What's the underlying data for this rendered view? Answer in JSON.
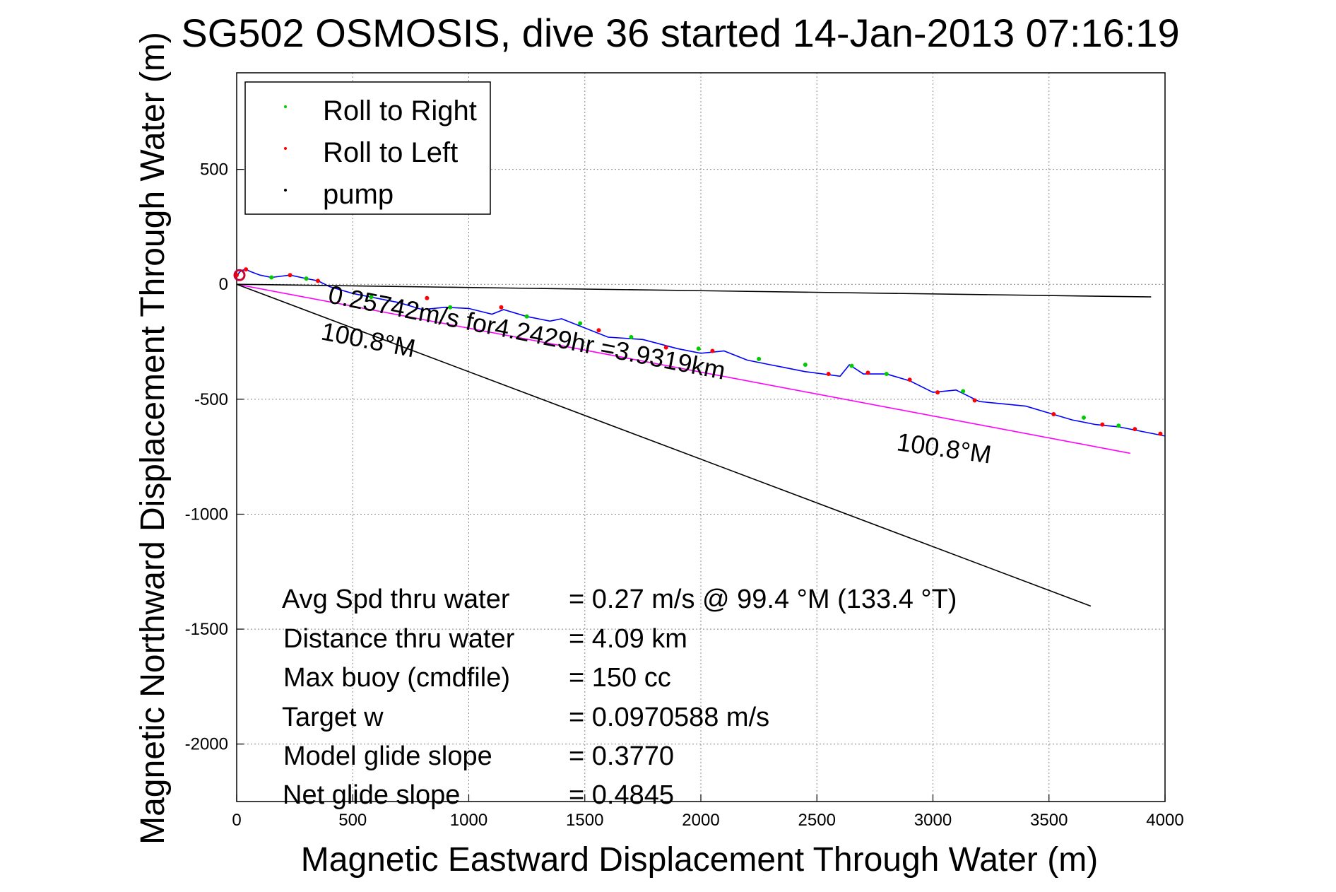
{
  "chart_data": {
    "type": "line",
    "title": "SG502 OSMOSIS, dive 36 started 14-Jan-2013 07:16:19",
    "xlabel": "Magnetic Eastward Displacement Through Water (m)",
    "ylabel": "Magnetic Northward Displacement Through Water (m)",
    "xlim": [
      0,
      4000
    ],
    "ylim": [
      -2250,
      920
    ],
    "xticks": [
      0,
      500,
      1000,
      1500,
      2000,
      2500,
      3000,
      3500,
      4000
    ],
    "yticks": [
      500,
      0,
      -500,
      -1000,
      -1500,
      -2000
    ],
    "grid": true,
    "legend_position": "top-left",
    "legend": [
      {
        "label": "Roll to Right",
        "color": "#00cc00"
      },
      {
        "label": "Roll to Left",
        "color": "#ff0000"
      },
      {
        "label": "pump",
        "color": "#000000"
      }
    ],
    "series": [
      {
        "color": "#0000ff",
        "x": [
          0,
          10,
          20,
          40,
          60,
          100,
          150,
          230,
          300,
          350,
          400,
          500,
          600,
          700,
          800,
          900,
          1000,
          1100,
          1150,
          1250,
          1350,
          1400,
          1500,
          1600,
          1750,
          1900,
          2000,
          2100,
          2200,
          2300,
          2350,
          2450,
          2600,
          2640,
          2700,
          2800,
          2900,
          3000,
          3100,
          3200,
          3300,
          3400,
          3500,
          3600,
          3700,
          3800,
          3900,
          4000
        ],
        "y": [
          30,
          50,
          60,
          65,
          55,
          40,
          30,
          40,
          25,
          15,
          -10,
          -40,
          -60,
          -80,
          -110,
          -100,
          -105,
          -130,
          -110,
          -140,
          -160,
          -150,
          -190,
          -230,
          -240,
          -280,
          -300,
          -290,
          -330,
          -350,
          -360,
          -380,
          -400,
          -350,
          -390,
          -390,
          -420,
          -470,
          -460,
          -510,
          -520,
          -530,
          -560,
          -590,
          -610,
          -620,
          -640,
          -660
        ]
      },
      {
        "color": "#ff00ff",
        "x": [
          0,
          3850
        ],
        "y": [
          0,
          -735
        ]
      },
      {
        "color": "#000000",
        "x": [
          0,
          3940
        ],
        "y": [
          0,
          -55
        ]
      },
      {
        "color": "#000000",
        "x": [
          0,
          3680
        ],
        "y": [
          0,
          -1400
        ]
      }
    ],
    "markers": {
      "roll_right": {
        "color": "#00cc00",
        "x": [
          150,
          300,
          580,
          920,
          1250,
          1480,
          1700,
          1990,
          2250,
          2450,
          2650,
          2800,
          3130,
          3650,
          3800
        ],
        "y": [
          30,
          25,
          -55,
          -100,
          -140,
          -170,
          -230,
          -280,
          -325,
          -350,
          -355,
          -390,
          -465,
          -580,
          -615
        ]
      },
      "roll_left": {
        "color": "#ff0000",
        "x": [
          0,
          40,
          230,
          350,
          820,
          1140,
          1560,
          1850,
          2050,
          2550,
          2720,
          2900,
          3020,
          3180,
          3520,
          3730,
          3870,
          3980
        ],
        "y": [
          40,
          65,
          40,
          15,
          -60,
          -100,
          -200,
          -275,
          -290,
          -390,
          -385,
          -415,
          -470,
          -505,
          -565,
          -610,
          -630,
          -650
        ]
      }
    },
    "annotations": {
      "speed_line": "0.25742m/s for4.2429hr =3.9319km",
      "heading_label_a": "100.8°M",
      "heading_label_b": "100.8°M"
    },
    "stats": [
      {
        "label": "Avg Spd thru water",
        "value": "=  0.27 m/s @  99.4 °M (133.4 °T)"
      },
      {
        "label": "Distance thru water",
        "value": "=  4.09 km"
      },
      {
        "label": "Max buoy (cmdfile)",
        "value": "= 150 cc"
      },
      {
        "label": "Target w",
        "value": "= 0.0970588 m/s"
      },
      {
        "label": "Model glide slope",
        "value": "= 0.3770"
      },
      {
        "label": "Net glide slope",
        "value": "= 0.4845"
      }
    ]
  }
}
